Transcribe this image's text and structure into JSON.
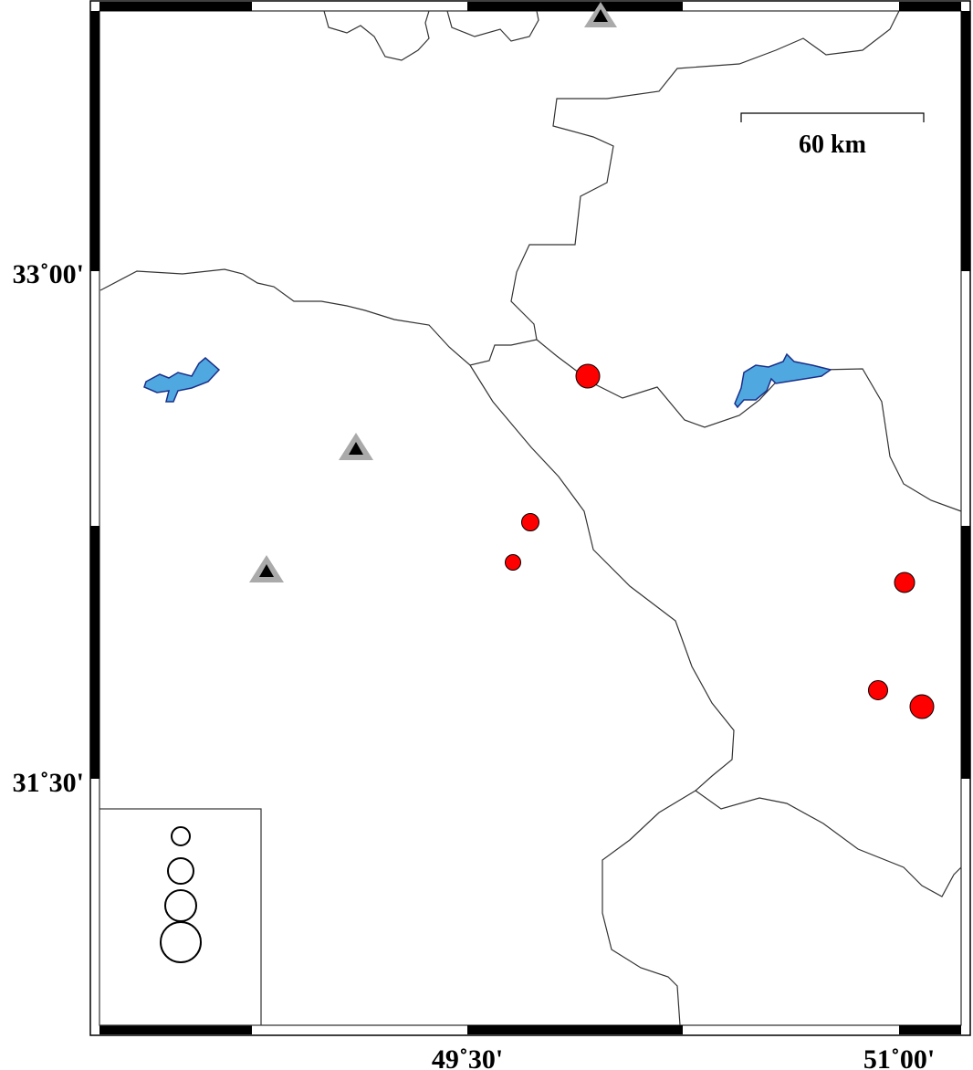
{
  "map": {
    "lat_labels": [
      "33˚00'",
      "31˚30'"
    ],
    "lon_labels": [
      "49˚30'",
      "51˚00'"
    ],
    "scale_bar": {
      "label": "60 km",
      "length_km": 60
    },
    "colors": {
      "earthquake": "#ff0000",
      "station_outer": "#aaaaaa",
      "station_inner": "#000000",
      "lake": "#4fa8e0",
      "lake_outline": "#1a2f8a"
    },
    "stations": [
      {
        "icon": "triangle"
      },
      {
        "icon": "triangle"
      },
      {
        "icon": "triangle"
      }
    ],
    "earthquakes": [
      {
        "size": "large"
      },
      {
        "size": "small"
      },
      {
        "size": "small"
      },
      {
        "size": "medium"
      },
      {
        "size": "medium"
      },
      {
        "size": "large"
      }
    ],
    "legend": {
      "symbols": [
        "circle-1",
        "circle-2",
        "circle-3",
        "circle-4"
      ]
    }
  }
}
